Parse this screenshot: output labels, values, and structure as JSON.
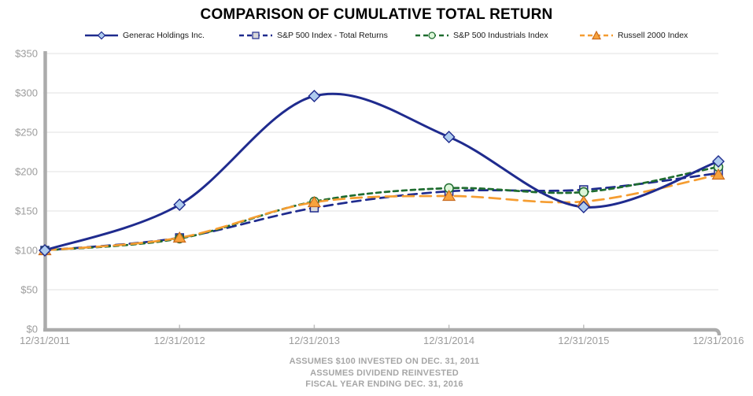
{
  "title": "COMPARISON OF CUMULATIVE TOTAL RETURN",
  "footer": {
    "line1": "ASSUMES $100 INVESTED ON DEC. 31, 2011",
    "line2": "ASSUMES DIVIDEND REINVESTED",
    "line3": "FISCAL YEAR ENDING DEC. 31, 2016"
  },
  "chart_data": {
    "type": "line",
    "title": "COMPARISON OF CUMULATIVE TOTAL RETURN",
    "x": [
      "12/31/2011",
      "12/31/2012",
      "12/31/2013",
      "12/31/2014",
      "12/31/2015",
      "12/31/2016"
    ],
    "series": [
      {
        "name": "S&P 500 Index - Total Returns",
        "values": [
          100,
          116,
          154,
          175,
          177,
          198
        ],
        "color": "#1F2B8E",
        "line_style": "dashed",
        "dash": "11,7",
        "marker": "square",
        "marker_fill": "#D9D9D9",
        "marker_stroke": "#1F2B8E"
      },
      {
        "name": "S&P 500 Industrials Index",
        "values": [
          100,
          115,
          162,
          179,
          174,
          206
        ],
        "color": "#1E6C2F",
        "line_style": "dashed",
        "dash": "6,5",
        "marker": "circle",
        "marker_fill": "#DCF6D8",
        "marker_stroke": "#1E6C2F"
      },
      {
        "name": "Russell 2000 Index",
        "values": [
          100,
          116,
          161,
          169,
          162,
          196
        ],
        "color": "#F59D31",
        "line_style": "dashed",
        "dash": "14,8",
        "marker": "triangle",
        "marker_fill": "#F8A33C",
        "marker_stroke": "#C96A1E"
      },
      {
        "name": "Generac Holdings Inc.",
        "values": [
          100,
          158,
          296,
          244,
          155,
          213
        ],
        "color": "#1F2B8E",
        "line_style": "solid",
        "dash": "",
        "marker": "diamond",
        "marker_fill": "#AFCCEF",
        "marker_stroke": "#1F2B8E"
      }
    ],
    "legend_order": [
      "Generac Holdings Inc.",
      "S&P 500 Index - Total Returns",
      "S&P 500 Industrials Index",
      "Russell 2000 Index"
    ],
    "legend_position": "top",
    "ylim": [
      0,
      350
    ],
    "ytick_step": 50,
    "ytick_labels": [
      "$0",
      "$50",
      "$100",
      "$150",
      "$200",
      "$250",
      "$300",
      "$350"
    ],
    "grid": true,
    "axis_color": "#ABABAB",
    "grid_color": "#E8E8E8",
    "tick_label_color": "#9C9C9C"
  }
}
